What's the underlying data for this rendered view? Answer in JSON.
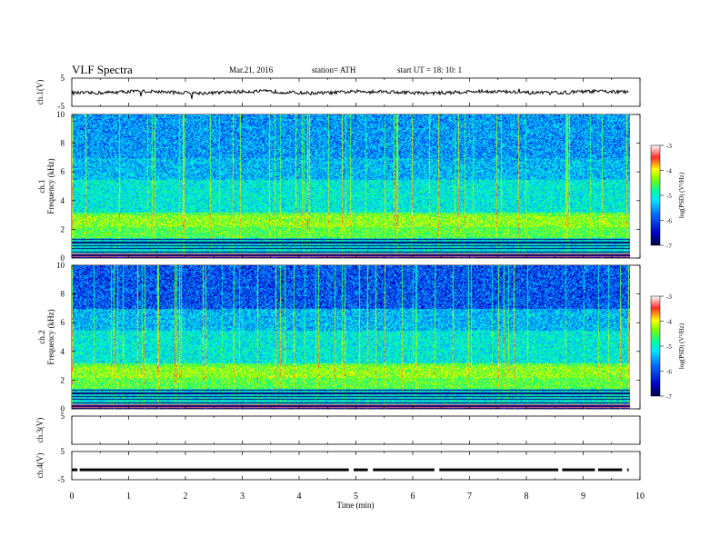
{
  "header": {
    "title": "VLF  Spectra",
    "date": "Mar.21, 2016",
    "station": "station= ATH",
    "start": "start  UT  =     18: 10: 1"
  },
  "chart_data": {
    "type": "heatmap",
    "x_axis": {
      "label": "Time  (min)",
      "range": [
        0,
        10
      ],
      "ticks": [
        "0",
        "1",
        "2",
        "3",
        "4",
        "5",
        "6",
        "7",
        "8",
        "9",
        "10"
      ],
      "data_end": 9.8
    },
    "panels": [
      {
        "id": "ch1-waveform",
        "type": "line",
        "ylabel": "ch.1(V)",
        "ylim": [
          -5,
          5
        ],
        "yticks": [
          "5",
          "-5"
        ],
        "trace_level_V": 0
      },
      {
        "id": "ch1-spectrogram",
        "type": "heatmap",
        "ylabel_lines": [
          "ch.1",
          "Frequency  (kHz)"
        ],
        "ylim_kHz": [
          0,
          10
        ],
        "yticks": [
          "0",
          "2",
          "4",
          "6",
          "8",
          "10"
        ],
        "colorbar": {
          "label": "log(PSD) (V²/Hz)",
          "range": [
            -7,
            -3
          ],
          "ticks": [
            "-3",
            "-4",
            "-5",
            "-6",
            "-7"
          ]
        }
      },
      {
        "id": "ch2-spectrogram",
        "type": "heatmap",
        "ylabel_lines": [
          "ch.2",
          "Frequency  (kHz)"
        ],
        "ylim_kHz": [
          0,
          10
        ],
        "yticks": [
          "0",
          "2",
          "4",
          "6",
          "8",
          "10"
        ],
        "colorbar": {
          "label": "log(PSD) (V²/Hz)",
          "range": [
            -7,
            -3
          ],
          "ticks": [
            "-3",
            "-4",
            "-5",
            "-6",
            "-7"
          ]
        }
      },
      {
        "id": "ch3-waveform",
        "type": "line",
        "ylabel": "ch.3(V)",
        "ylim": [
          -5,
          5
        ],
        "yticks": [
          "5"
        ]
      },
      {
        "id": "ch4-waveform",
        "type": "line",
        "ylabel": "ch.4(V)",
        "ylim": [
          -5,
          5
        ],
        "yticks": [
          "5",
          "-5"
        ],
        "trace_level_V": -1.5
      }
    ],
    "colormap": [
      "#ffffff",
      "#ff2a2a",
      "#ffff00",
      "#7cff00",
      "#00ff9c",
      "#00e6ff",
      "#0066ff",
      "#0000c8",
      "#000040"
    ]
  }
}
